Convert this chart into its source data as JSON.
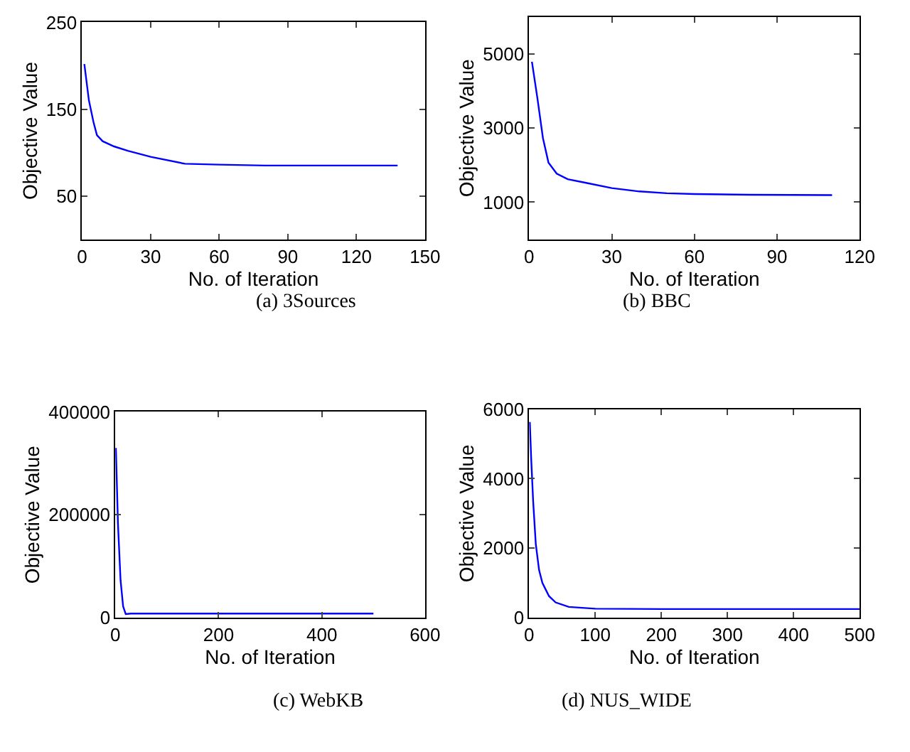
{
  "chart_data": [
    {
      "type": "line",
      "title": "(a) 3Sources",
      "xlabel": "No. of Iteration",
      "ylabel": "Objective Value",
      "xlim": [
        0,
        150
      ],
      "xticks": [
        0,
        30,
        60,
        90,
        120,
        150
      ],
      "ylim": [
        0,
        250
      ],
      "yticks": [
        50,
        150,
        250
      ],
      "series": [
        {
          "color": "#0000ff",
          "x": [
            1,
            3,
            5,
            6.5,
            9,
            14,
            20,
            30,
            45,
            60,
            80,
            100,
            120,
            138
          ],
          "values": [
            202,
            160,
            135,
            120,
            113,
            107,
            102,
            95,
            87,
            86,
            85,
            85,
            85,
            85
          ]
        }
      ]
    },
    {
      "type": "line",
      "title": "(b) BBC",
      "xlabel": "No. of Iteration",
      "ylabel": "Objective Value",
      "xlim": [
        0,
        120
      ],
      "xticks": [
        0,
        30,
        60,
        90,
        120
      ],
      "ylim": [
        0,
        6000
      ],
      "yticks": [
        1000,
        3000,
        5000
      ],
      "series": [
        {
          "color": "#0000ff",
          "x": [
            1,
            3,
            5,
            7,
            10,
            14,
            20,
            30,
            40,
            50,
            60,
            80,
            110
          ],
          "values": [
            4790,
            3800,
            2730,
            2070,
            1770,
            1620,
            1530,
            1380,
            1290,
            1240,
            1220,
            1200,
            1190
          ]
        }
      ]
    },
    {
      "type": "line",
      "title": "(c) WebKB",
      "xlabel": "No. of Iteration",
      "ylabel": "Objective Value",
      "xlim": [
        0,
        600
      ],
      "xticks": [
        0,
        200,
        400,
        600
      ],
      "ylim": [
        0,
        400000
      ],
      "yticks": [
        0,
        200000,
        400000
      ],
      "series": [
        {
          "color": "#0000ff",
          "x": [
            1,
            5,
            10,
            15,
            20,
            30,
            100,
            300,
            500
          ],
          "values": [
            330000,
            183000,
            73000,
            22000,
            7000,
            8000,
            8000,
            8000,
            8000
          ]
        }
      ]
    },
    {
      "type": "line",
      "title": "(d) NUS_WIDE",
      "xlabel": "No. of Iteration",
      "ylabel": "Objective Value",
      "xlim": [
        0,
        500
      ],
      "xticks": [
        0,
        100,
        200,
        300,
        400,
        500
      ],
      "ylim": [
        0,
        6000
      ],
      "yticks": [
        0,
        2000,
        4000,
        6000
      ],
      "series": [
        {
          "color": "#0000ff",
          "x": [
            1,
            3,
            6,
            10,
            15,
            20,
            30,
            40,
            60,
            100,
            200,
            500
          ],
          "values": [
            5630,
            4600,
            3360,
            2120,
            1370,
            1000,
            620,
            440,
            310,
            260,
            250,
            250
          ]
        }
      ]
    }
  ]
}
